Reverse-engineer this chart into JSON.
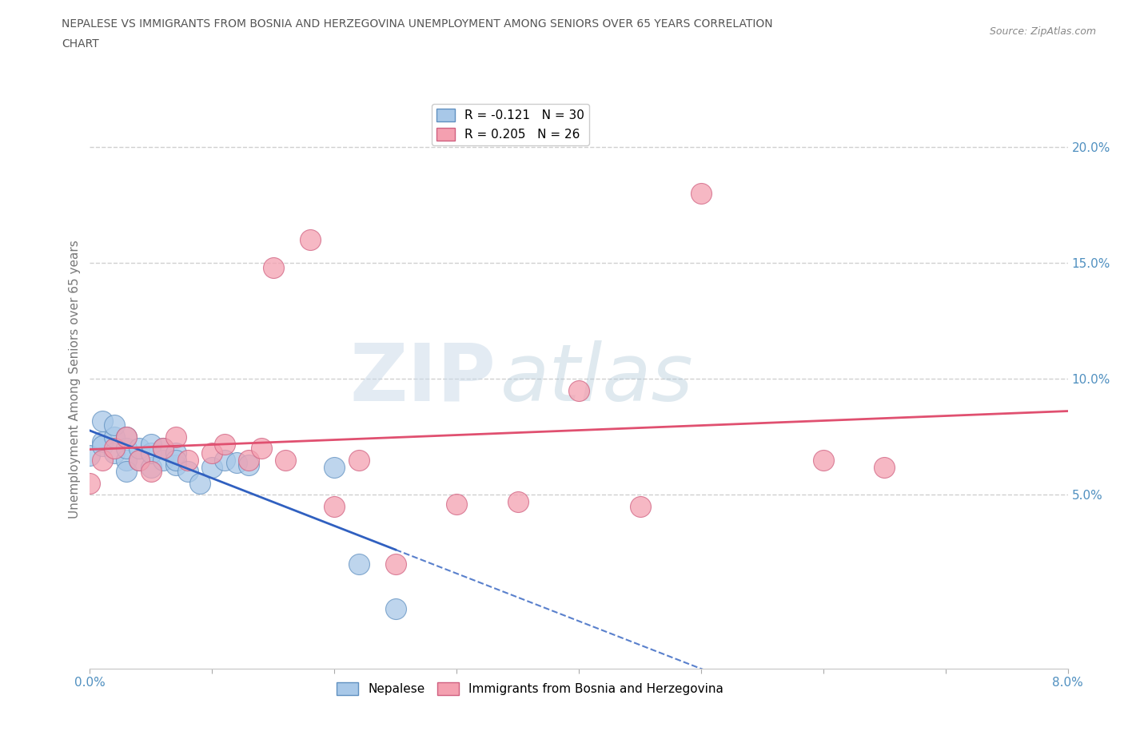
{
  "title_line1": "NEPALESE VS IMMIGRANTS FROM BOSNIA AND HERZEGOVINA UNEMPLOYMENT AMONG SENIORS OVER 65 YEARS CORRELATION",
  "title_line2": "CHART",
  "source_text": "Source: ZipAtlas.com",
  "ylabel": "Unemployment Among Seniors over 65 years",
  "xlim": [
    0.0,
    0.08
  ],
  "ylim": [
    -0.025,
    0.225
  ],
  "xticks": [
    0.0,
    0.01,
    0.02,
    0.03,
    0.04,
    0.05,
    0.06,
    0.07,
    0.08
  ],
  "xticklabels": [
    "0.0%",
    "",
    "",
    "",
    "",
    "",
    "",
    "",
    "8.0%"
  ],
  "yticks": [
    0.05,
    0.1,
    0.15,
    0.2
  ],
  "yticklabels": [
    "5.0%",
    "10.0%",
    "15.0%",
    "20.0%"
  ],
  "nepalese_color": "#a8c8e8",
  "nepalese_edge": "#6090c0",
  "bosnia_color": "#f4a0b0",
  "bosnia_edge": "#d06080",
  "line_blue": "#3060c0",
  "line_pink": "#e05070",
  "background_color": "#ffffff",
  "grid_color": "#d0d0d0",
  "nepalese_x": [
    0.0,
    0.001,
    0.001,
    0.001,
    0.002,
    0.002,
    0.002,
    0.003,
    0.003,
    0.003,
    0.003,
    0.004,
    0.004,
    0.005,
    0.005,
    0.005,
    0.006,
    0.006,
    0.007,
    0.007,
    0.007,
    0.008,
    0.009,
    0.01,
    0.011,
    0.012,
    0.013,
    0.02,
    0.022,
    0.025
  ],
  "nepalese_y": [
    0.067,
    0.073,
    0.071,
    0.082,
    0.068,
    0.075,
    0.08,
    0.065,
    0.07,
    0.075,
    0.06,
    0.065,
    0.07,
    0.062,
    0.068,
    0.072,
    0.065,
    0.07,
    0.063,
    0.068,
    0.065,
    0.06,
    0.055,
    0.062,
    0.065,
    0.064,
    0.063,
    0.062,
    0.02,
    0.001
  ],
  "bosnia_x": [
    0.0,
    0.001,
    0.002,
    0.003,
    0.004,
    0.005,
    0.006,
    0.007,
    0.008,
    0.01,
    0.011,
    0.013,
    0.014,
    0.015,
    0.016,
    0.018,
    0.02,
    0.022,
    0.025,
    0.03,
    0.035,
    0.04,
    0.045,
    0.05,
    0.06,
    0.065
  ],
  "bosnia_y": [
    0.055,
    0.065,
    0.07,
    0.075,
    0.065,
    0.06,
    0.07,
    0.075,
    0.065,
    0.068,
    0.072,
    0.065,
    0.07,
    0.148,
    0.065,
    0.16,
    0.045,
    0.065,
    0.02,
    0.046,
    0.047,
    0.095,
    0.045,
    0.18,
    0.065,
    0.062
  ],
  "legend_nepalese_label": "R = -0.121   N = 30",
  "legend_bosnia_label": "R = 0.205   N = 26",
  "watermark_zip": "ZIP",
  "watermark_atlas": "atlas"
}
